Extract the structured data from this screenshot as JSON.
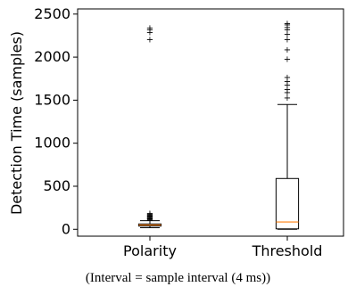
{
  "chart_data": {
    "type": "boxplot",
    "title": "",
    "xlabel": "",
    "ylabel": "Detection Time (samples)",
    "ylim": [
      -80,
      2560
    ],
    "yticks": [
      0,
      500,
      1000,
      1500,
      2000,
      2500
    ],
    "categories": [
      "Polarity",
      "Threshold"
    ],
    "series": [
      {
        "category": "Polarity",
        "whisker_low": 18,
        "q1": 38,
        "median": 50,
        "q3": 62,
        "whisker_high": 100,
        "outliers": [
          110,
          120,
          128,
          136,
          145,
          152,
          160,
          168,
          178,
          188,
          2210,
          2290,
          2320,
          2345
        ]
      },
      {
        "category": "Threshold",
        "whisker_low": 0,
        "q1": 5,
        "median": 85,
        "q3": 590,
        "whisker_high": 1450,
        "outliers": [
          1530,
          1590,
          1630,
          1680,
          1720,
          1770,
          1980,
          2090,
          2210,
          2270,
          2320,
          2350,
          2380,
          2395
        ]
      }
    ],
    "colors": {
      "box": "#000000",
      "median": "#ff7f0e",
      "outlier": "#000000"
    },
    "grid": false
  },
  "caption": "(Interval = sample interval (4 ms))"
}
